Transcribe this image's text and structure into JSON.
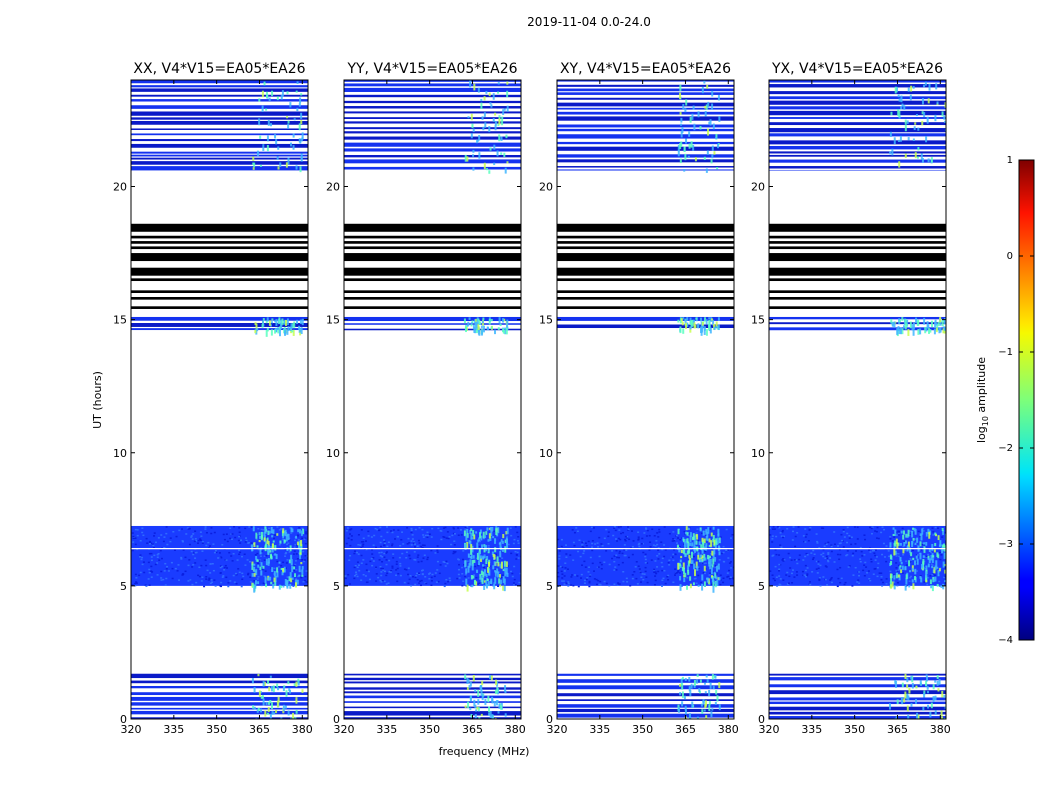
{
  "figure_title": "2019-11-04 0.0-24.0",
  "chart_data": {
    "type": "heatmap",
    "suptitle": "2019-11-04 0.0-24.0",
    "xlabel": "frequency (MHz)",
    "ylabel": "UT (hours)",
    "x_range": [
      320,
      382
    ],
    "y_range": [
      0,
      24
    ],
    "x_ticks": [
      320,
      335,
      350,
      365,
      380
    ],
    "y_ticks": [
      0,
      5,
      10,
      15,
      20
    ],
    "panels": [
      {
        "title": "XX, V4*V15=EA05*EA26",
        "rfi_band_mhz": [
          362,
          380
        ]
      },
      {
        "title": "YY, V4*V15=EA05*EA26",
        "rfi_band_mhz": [
          362,
          377
        ]
      },
      {
        "title": "XY, V4*V15=EA05*EA26",
        "rfi_band_mhz": [
          362,
          377
        ]
      },
      {
        "title": "YX, V4*V15=EA05*EA26",
        "rfi_band_mhz": [
          362,
          382
        ]
      }
    ],
    "data_blocks_ut": [
      {
        "start": 0.0,
        "end": 1.7,
        "kind": "striped"
      },
      {
        "start": 5.0,
        "end": 7.25,
        "kind": "continuous",
        "gap_at": 6.4
      },
      {
        "start": 14.6,
        "end": 15.1,
        "kind": "striped"
      },
      {
        "start": 20.6,
        "end": 24.0,
        "kind": "striped"
      }
    ],
    "flagged_blocks_ut": [
      [
        15.4,
        15.5
      ],
      [
        15.75,
        15.85
      ],
      [
        16.0,
        16.1
      ],
      [
        16.45,
        16.55
      ],
      [
        16.65,
        16.95
      ],
      [
        17.2,
        17.5
      ],
      [
        17.65,
        17.75
      ],
      [
        17.85,
        17.95
      ],
      [
        18.05,
        18.15
      ],
      [
        18.3,
        18.6
      ]
    ],
    "colorbar": {
      "label": "log10 amplitude",
      "label_main": "log",
      "label_sub": "10",
      "label_rest": " amplitude",
      "range": [
        -4,
        1
      ],
      "ticks": [
        1,
        0,
        -1,
        -2,
        -3,
        -4
      ],
      "tick_labels": [
        "1",
        "0",
        "−1",
        "−2",
        "−3",
        "−4"
      ],
      "colormap": "jet"
    }
  }
}
